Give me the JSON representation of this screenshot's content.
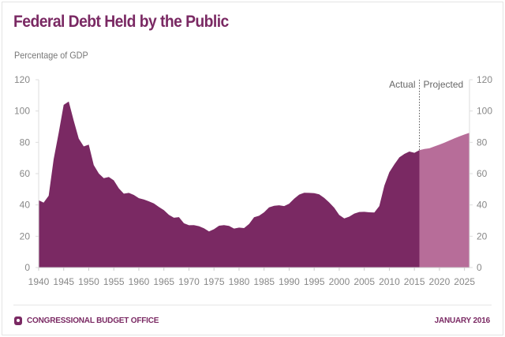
{
  "chart_data": {
    "type": "area",
    "title": "Federal Debt Held by the Public",
    "ylabel": "Percentage of GDP",
    "xlim": [
      1940,
      2026
    ],
    "ylim": [
      0,
      120
    ],
    "yticks": [
      0,
      20,
      40,
      60,
      80,
      100,
      120
    ],
    "xticks": [
      1940,
      1945,
      1950,
      1955,
      1960,
      1965,
      1970,
      1975,
      1980,
      1985,
      1990,
      1995,
      2000,
      2005,
      2010,
      2015,
      2020,
      2025
    ],
    "grid": false,
    "annotations": {
      "actual": "Actual",
      "projected": "Projected",
      "divider_year": 2016
    },
    "series": [
      {
        "name": "Actual",
        "color": "#7a2963",
        "x": [
          1940,
          1941,
          1942,
          1943,
          1944,
          1945,
          1946,
          1947,
          1948,
          1949,
          1950,
          1951,
          1952,
          1953,
          1954,
          1955,
          1956,
          1957,
          1958,
          1959,
          1960,
          1961,
          1962,
          1963,
          1964,
          1965,
          1966,
          1967,
          1968,
          1969,
          1970,
          1971,
          1972,
          1973,
          1974,
          1975,
          1976,
          1977,
          1978,
          1979,
          1980,
          1981,
          1982,
          1983,
          1984,
          1985,
          1986,
          1987,
          1988,
          1989,
          1990,
          1991,
          1992,
          1993,
          1994,
          1995,
          1996,
          1997,
          1998,
          1999,
          2000,
          2001,
          2002,
          2003,
          2004,
          2005,
          2006,
          2007,
          2008,
          2009,
          2010,
          2011,
          2012,
          2013,
          2014,
          2015,
          2016
        ],
        "values": [
          43,
          41.5,
          45.9,
          69.2,
          86.1,
          103.9,
          106.1,
          93.9,
          82.4,
          77.4,
          78.5,
          65.5,
          60.1,
          57.1,
          57.9,
          55.7,
          50.6,
          47.2,
          47.7,
          46.4,
          44.3,
          43.5,
          42.3,
          41,
          38.7,
          36.7,
          33.7,
          31.8,
          32.2,
          28.3,
          27,
          27.1,
          26.4,
          25.1,
          23.1,
          24.5,
          26.7,
          27.1,
          26.6,
          24.9,
          25.5,
          25.2,
          27.9,
          32.1,
          33.1,
          35.3,
          38.4,
          39.5,
          39.8,
          39.3,
          40.8,
          44,
          46.6,
          47.8,
          47.7,
          47.5,
          46.8,
          44.5,
          41.6,
          38.2,
          33.6,
          31.4,
          32.5,
          34.5,
          35.5,
          35.6,
          35.3,
          35.2,
          39.3,
          52.3,
          60.9,
          65.9,
          70.4,
          72.6,
          74.1,
          73.3,
          75
        ]
      },
      {
        "name": "Projected",
        "color": "#b76d99",
        "x": [
          2016,
          2017,
          2018,
          2019,
          2020,
          2021,
          2022,
          2023,
          2024,
          2025,
          2026
        ],
        "values": [
          75,
          75.8,
          76.2,
          77.4,
          78.5,
          79.8,
          81.2,
          82.6,
          83.8,
          85,
          86.1
        ]
      }
    ]
  },
  "footer": {
    "agency": "CONGRESSIONAL BUDGET OFFICE",
    "date": "JANUARY 2016"
  }
}
